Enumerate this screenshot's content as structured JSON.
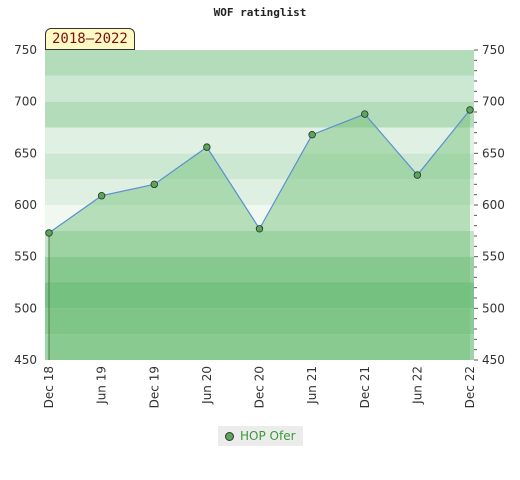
{
  "chart_data": {
    "type": "area",
    "title": "WOF ratinglist",
    "period_label": "2018–2022",
    "x": [
      "Dec 18",
      "Jun 19",
      "Dec 19",
      "Jun 20",
      "Dec 20",
      "Jun 21",
      "Dec 21",
      "Jun 22",
      "Dec 22"
    ],
    "series": [
      {
        "name": "HOP Ofer",
        "values": [
          573,
          609,
          620,
          656,
          577,
          668,
          688,
          629,
          692
        ]
      }
    ],
    "ylim": [
      450,
      750
    ],
    "yticks": [
      450,
      500,
      550,
      600,
      650,
      700,
      750
    ],
    "y_axis_both_sides": true,
    "legend_position": "bottom-center",
    "colors": {
      "line": "#5b8fd0",
      "area": "#6fbf73",
      "marker": "#5aa75a"
    }
  }
}
